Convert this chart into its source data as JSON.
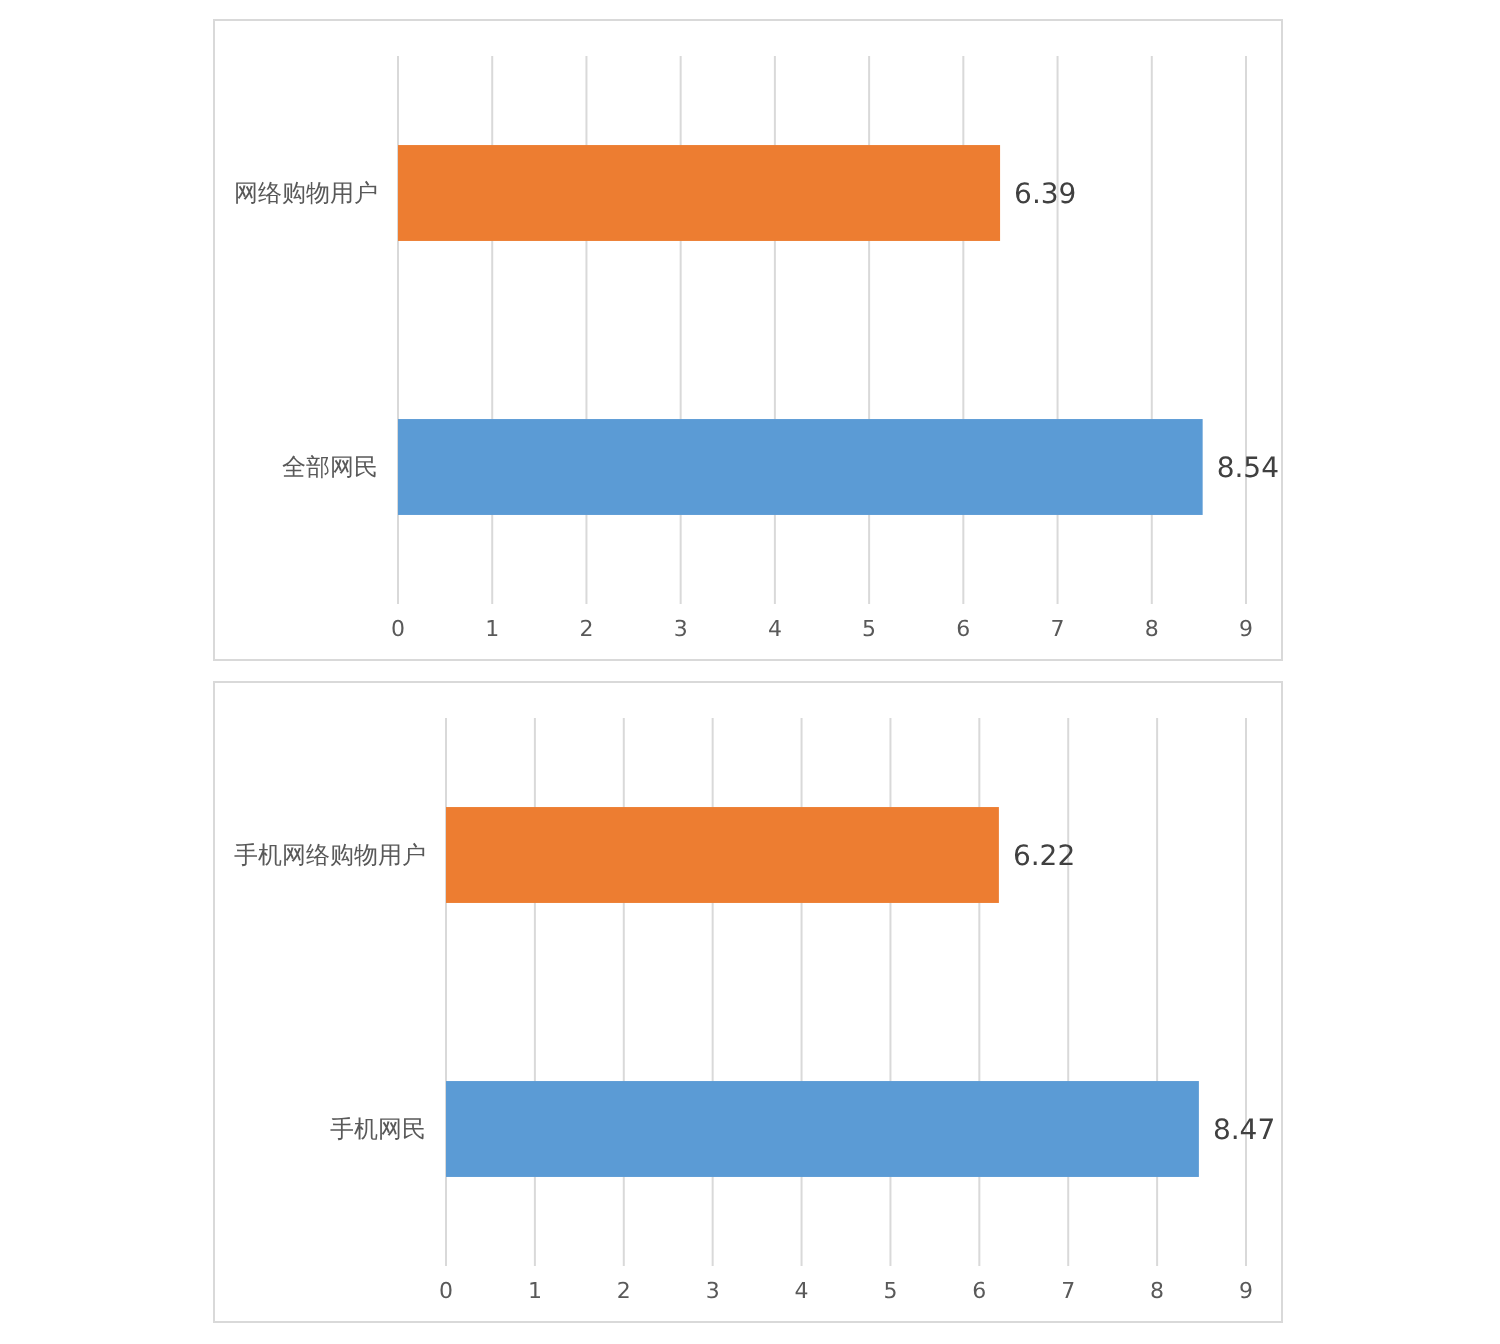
{
  "chart_data": [
    {
      "type": "bar",
      "orientation": "horizontal",
      "categories": [
        "网络购物用户",
        "全部网民"
      ],
      "values": [
        6.39,
        8.54
      ],
      "colors": [
        "#ed7d31",
        "#5b9bd5"
      ],
      "xlim": [
        0,
        9
      ],
      "xticks": [
        0,
        1,
        2,
        3,
        4,
        5,
        6,
        7,
        8,
        9
      ],
      "grid": "x",
      "data_labels": true
    },
    {
      "type": "bar",
      "orientation": "horizontal",
      "categories": [
        "手机网络购物用户",
        "手机网民"
      ],
      "values": [
        6.22,
        8.47
      ],
      "colors": [
        "#ed7d31",
        "#5b9bd5"
      ],
      "xlim": [
        0,
        9
      ],
      "xticks": [
        0,
        1,
        2,
        3,
        4,
        5,
        6,
        7,
        8,
        9
      ],
      "grid": "x",
      "data_labels": true
    }
  ]
}
